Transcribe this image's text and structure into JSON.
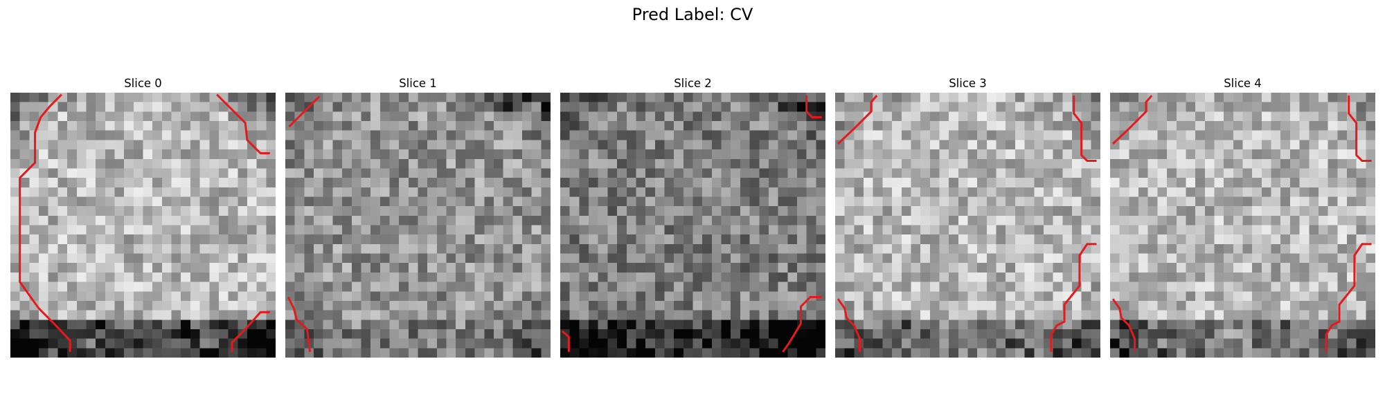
{
  "figure": {
    "title": "Pred Label: CV"
  },
  "contour_color": "#e41a1c",
  "slices": [
    {
      "label": "Slice 0",
      "seed": 11,
      "base": 0.72,
      "corner_dark": 0.55,
      "bottom_dark": 0.55
    },
    {
      "label": "Slice 1",
      "seed": 23,
      "base": 0.58,
      "corner_dark": 0.35,
      "bottom_dark": 0.1
    },
    {
      "label": "Slice 2",
      "seed": 37,
      "base": 0.5,
      "corner_dark": 0.35,
      "bottom_dark": 0.45
    },
    {
      "label": "Slice 3",
      "seed": 41,
      "base": 0.72,
      "corner_dark": 0.3,
      "bottom_dark": 0.35
    },
    {
      "label": "Slice 4",
      "seed": 53,
      "base": 0.72,
      "corner_dark": 0.3,
      "bottom_dark": 0.35
    }
  ]
}
